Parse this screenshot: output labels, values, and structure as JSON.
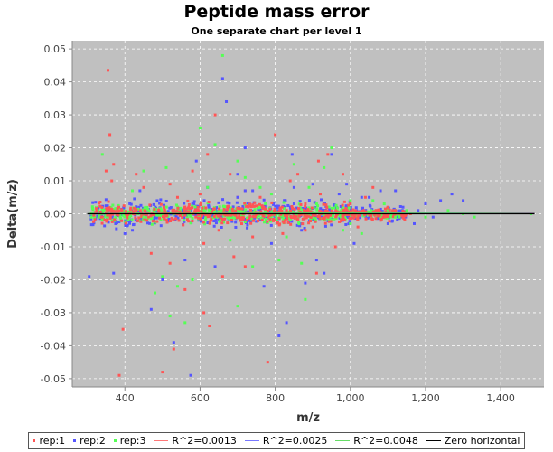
{
  "chart_data": {
    "type": "scatter",
    "title": "Peptide mass error",
    "subtitle": "One separate chart per level 1",
    "xlabel": "m/z",
    "ylabel": "Delta(m/z)",
    "xlim": [
      260,
      1515
    ],
    "ylim": [
      -0.0525,
      0.0525
    ],
    "x_ticks": [
      400,
      600,
      800,
      1000,
      1200,
      1400
    ],
    "x_tick_labels": [
      "400",
      "600",
      "800",
      "1,000",
      "1,200",
      "1,400"
    ],
    "y_ticks": [
      -0.05,
      -0.04,
      -0.03,
      -0.02,
      -0.01,
      0.0,
      0.01,
      0.02,
      0.03,
      0.04,
      0.05
    ],
    "y_tick_labels": [
      "-0.05",
      "-0.04",
      "-0.03",
      "-0.02",
      "-0.01",
      "0.00",
      "0.01",
      "0.02",
      "0.03",
      "0.04",
      "0.05"
    ],
    "grid": true,
    "plot_background": "#c0c0c0",
    "legend_position": "bottom",
    "series": [
      {
        "name": "rep:1",
        "kind": "points",
        "color": "#ff5555",
        "points": [
          [
            355,
            0.0435
          ],
          [
            360,
            0.024
          ],
          [
            385,
            -0.049
          ],
          [
            395,
            -0.035
          ],
          [
            350,
            0.013
          ],
          [
            365,
            0.01
          ],
          [
            340,
            -0.001
          ],
          [
            370,
            0.015
          ],
          [
            430,
            0.012
          ],
          [
            450,
            0.008
          ],
          [
            470,
            -0.012
          ],
          [
            500,
            -0.048
          ],
          [
            520,
            -0.015
          ],
          [
            540,
            0.005
          ],
          [
            560,
            -0.023
          ],
          [
            580,
            0.013
          ],
          [
            600,
            0.006
          ],
          [
            610,
            -0.03
          ],
          [
            620,
            0.018
          ],
          [
            640,
            0.03
          ],
          [
            650,
            -0.005
          ],
          [
            660,
            -0.019
          ],
          [
            680,
            0.012
          ],
          [
            700,
            0.005
          ],
          [
            720,
            0.007
          ],
          [
            740,
            -0.007
          ],
          [
            760,
            0.005
          ],
          [
            780,
            -0.045
          ],
          [
            800,
            0.024
          ],
          [
            820,
            -0.006
          ],
          [
            840,
            0.01
          ],
          [
            860,
            0.012
          ],
          [
            880,
            -0.005
          ],
          [
            900,
            -0.004
          ],
          [
            920,
            0.006
          ],
          [
            940,
            0.018
          ],
          [
            960,
            -0.01
          ],
          [
            980,
            0.012
          ],
          [
            1000,
            0.003
          ],
          [
            1020,
            -0.004
          ],
          [
            1040,
            0.005
          ],
          [
            1060,
            0.008
          ],
          [
            1080,
            -0.002
          ],
          [
            1100,
            0.002
          ],
          [
            1120,
            0.001
          ],
          [
            1140,
            -0.001
          ],
          [
            1160,
            0.0
          ],
          [
            520,
            0.009
          ],
          [
            570,
            0.002
          ],
          [
            610,
            -0.009
          ],
          [
            690,
            -0.013
          ],
          [
            720,
            -0.016
          ],
          [
            625,
            -0.034
          ],
          [
            530,
            -0.041
          ],
          [
            915,
            0.016
          ],
          [
            910,
            -0.018
          ]
        ]
      },
      {
        "name": "rep:2",
        "kind": "points",
        "color": "#5555ff",
        "points": [
          [
            305,
            -0.019
          ],
          [
            370,
            -0.018
          ],
          [
            400,
            -0.006
          ],
          [
            420,
            -0.005
          ],
          [
            440,
            0.007
          ],
          [
            470,
            -0.029
          ],
          [
            500,
            -0.02
          ],
          [
            530,
            -0.039
          ],
          [
            560,
            -0.014
          ],
          [
            590,
            0.016
          ],
          [
            620,
            0.008
          ],
          [
            640,
            -0.016
          ],
          [
            660,
            0.041
          ],
          [
            670,
            0.034
          ],
          [
            700,
            0.012
          ],
          [
            720,
            0.007
          ],
          [
            740,
            0.007
          ],
          [
            770,
            -0.022
          ],
          [
            790,
            -0.009
          ],
          [
            810,
            -0.037
          ],
          [
            830,
            -0.033
          ],
          [
            850,
            0.008
          ],
          [
            870,
            -0.005
          ],
          [
            900,
            0.009
          ],
          [
            910,
            -0.014
          ],
          [
            930,
            -0.018
          ],
          [
            950,
            0.018
          ],
          [
            970,
            0.006
          ],
          [
            990,
            0.009
          ],
          [
            1010,
            -0.009
          ],
          [
            1030,
            0.005
          ],
          [
            1050,
            0.005
          ],
          [
            1080,
            0.007
          ],
          [
            1100,
            -0.003
          ],
          [
            1120,
            0.007
          ],
          [
            1140,
            0.002
          ],
          [
            1170,
            -0.003
          ],
          [
            1200,
            0.003
          ],
          [
            1240,
            0.004
          ],
          [
            1270,
            0.006
          ],
          [
            1300,
            0.004
          ],
          [
            1180,
            0.001
          ],
          [
            1220,
            -0.001
          ],
          [
            575,
            -0.049
          ],
          [
            700,
            0.005
          ],
          [
            720,
            0.02
          ],
          [
            845,
            0.018
          ],
          [
            880,
            -0.021
          ]
        ]
      },
      {
        "name": "rep:3",
        "kind": "points",
        "color": "#55ff55",
        "points": [
          [
            340,
            0.018
          ],
          [
            420,
            0.007
          ],
          [
            450,
            -0.001
          ],
          [
            480,
            -0.024
          ],
          [
            500,
            -0.019
          ],
          [
            510,
            0.014
          ],
          [
            540,
            -0.022
          ],
          [
            560,
            -0.033
          ],
          [
            580,
            -0.02
          ],
          [
            600,
            0.026
          ],
          [
            620,
            0.008
          ],
          [
            640,
            0.021
          ],
          [
            660,
            0.048
          ],
          [
            680,
            -0.008
          ],
          [
            700,
            0.016
          ],
          [
            720,
            0.011
          ],
          [
            740,
            -0.016
          ],
          [
            760,
            0.008
          ],
          [
            790,
            0.006
          ],
          [
            810,
            -0.014
          ],
          [
            830,
            -0.007
          ],
          [
            850,
            0.015
          ],
          [
            870,
            -0.015
          ],
          [
            890,
            0.008
          ],
          [
            910,
            0.003
          ],
          [
            930,
            0.014
          ],
          [
            950,
            0.02
          ],
          [
            980,
            -0.005
          ],
          [
            1000,
            0.004
          ],
          [
            1030,
            -0.006
          ],
          [
            1060,
            0.004
          ],
          [
            1090,
            0.003
          ],
          [
            1120,
            -0.001
          ],
          [
            1150,
            0.001
          ],
          [
            1200,
            -0.001
          ],
          [
            1260,
            0.001
          ],
          [
            1300,
            0.0
          ],
          [
            1330,
            -0.001
          ],
          [
            520,
            -0.031
          ],
          [
            880,
            -0.026
          ],
          [
            700,
            -0.028
          ],
          [
            450,
            0.013
          ],
          [
            1000,
            -0.003
          ],
          [
            1480,
            0.0
          ]
        ]
      },
      {
        "name": "R^2=0.0013",
        "kind": "line",
        "color": "#ff7777",
        "points": [
          [
            300,
            0.0
          ],
          [
            1490,
            0.0003
          ]
        ]
      },
      {
        "name": "R^2=0.0025",
        "kind": "line",
        "color": "#7777ff",
        "points": [
          [
            300,
            0.0
          ],
          [
            1490,
            0.0004
          ]
        ]
      },
      {
        "name": "R^2=0.0048",
        "kind": "line",
        "color": "#66dd66",
        "points": [
          [
            300,
            0.0
          ],
          [
            1490,
            0.0005
          ]
        ]
      },
      {
        "name": "Zero horizontal",
        "kind": "line",
        "color": "#000000",
        "points": [
          [
            300,
            0.0
          ],
          [
            1490,
            0.0
          ]
        ]
      }
    ],
    "dense_band": [
      {
        "color": "#5555ff",
        "x_range": [
          310,
          1150
        ],
        "spread": 0.0035
      },
      {
        "color": "#55ff55",
        "x_range": [
          310,
          1150
        ],
        "spread": 0.0025
      },
      {
        "color": "#ff5555",
        "x_range": [
          310,
          1150
        ],
        "spread": 0.003
      }
    ]
  },
  "legend": {
    "items": [
      {
        "label": "rep:1",
        "kind": "dot",
        "color": "#ff5555"
      },
      {
        "label": "rep:2",
        "kind": "dot",
        "color": "#5555ff"
      },
      {
        "label": "rep:3",
        "kind": "dot",
        "color": "#55ff55"
      },
      {
        "label": "R^2=0.0013",
        "kind": "line",
        "color": "#ff7777"
      },
      {
        "label": "R^2=0.0025",
        "kind": "line",
        "color": "#7777ff"
      },
      {
        "label": "R^2=0.0048",
        "kind": "line",
        "color": "#66dd66"
      },
      {
        "label": "Zero horizontal",
        "kind": "line",
        "color": "#000000"
      }
    ]
  }
}
